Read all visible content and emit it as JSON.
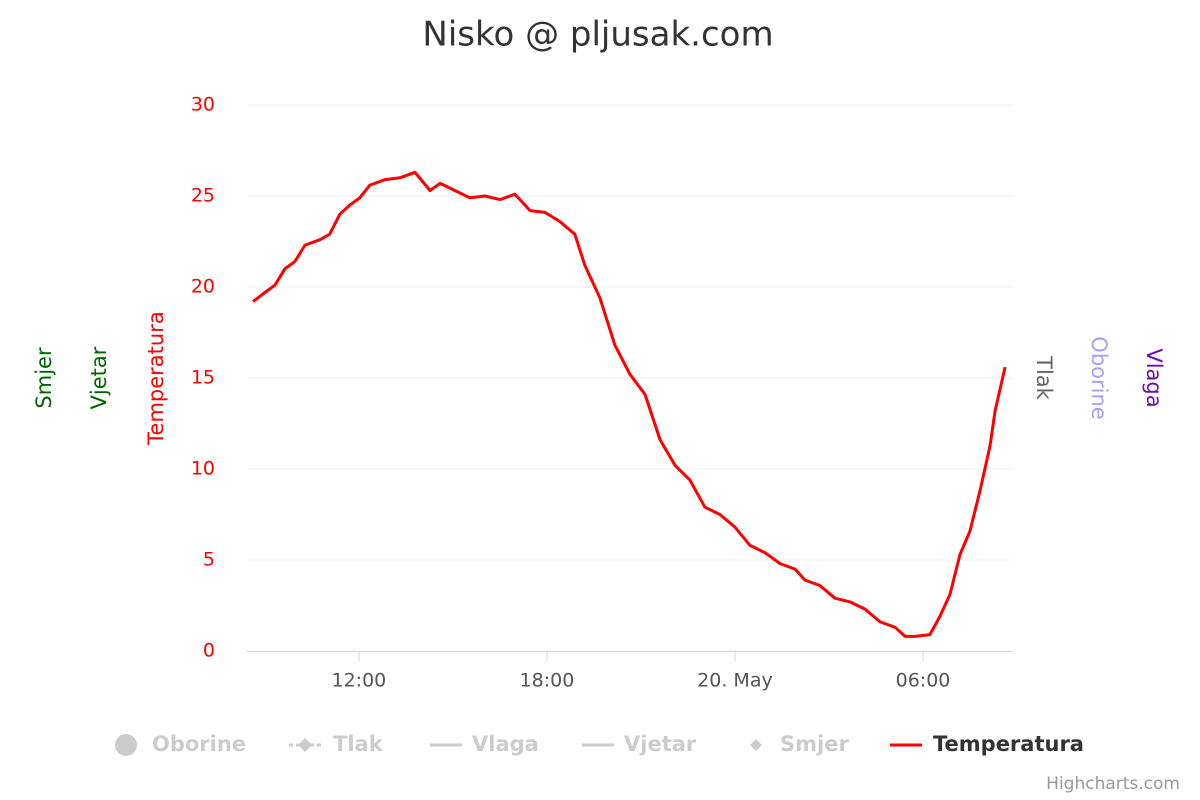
{
  "chart_data": {
    "type": "line",
    "title": "Nisko @ pljusak.com",
    "x": [
      8.62,
      9.0,
      9.32,
      9.64,
      9.96,
      10.28,
      10.76,
      11.07,
      11.39,
      11.71,
      12.03,
      12.35,
      12.83,
      13.31,
      13.79,
      14.27,
      14.59,
      15.06,
      15.54,
      16.02,
      16.5,
      16.98,
      17.46,
      17.94,
      18.41,
      18.89,
      19.21,
      19.69,
      20.17,
      20.65,
      21.13,
      21.61,
      22.09,
      22.56,
      23.04,
      23.52,
      24.0,
      24.48,
      24.96,
      25.44,
      25.92,
      26.23,
      26.71,
      27.19,
      27.67,
      28.15,
      28.63,
      29.11,
      29.43,
      29.74,
      30.22,
      30.54,
      30.86,
      31.18,
      31.5,
      31.82,
      32.14,
      32.3,
      32.62
    ],
    "series": [
      {
        "name": "Temperatura",
        "color": "#ff0000",
        "values": [
          19.2,
          19.7,
          20.1,
          21.0,
          21.4,
          22.3,
          22.6,
          22.9,
          24.0,
          24.5,
          24.9,
          25.6,
          25.9,
          26.0,
          26.3,
          25.3,
          25.7,
          25.3,
          24.9,
          25.0,
          24.8,
          25.1,
          24.2,
          24.1,
          23.6,
          22.9,
          21.2,
          19.4,
          16.8,
          15.2,
          14.1,
          11.6,
          10.2,
          9.4,
          7.9,
          7.5,
          6.8,
          5.8,
          5.4,
          4.8,
          4.5,
          3.9,
          3.6,
          2.9,
          2.7,
          2.3,
          1.6,
          1.3,
          0.8,
          0.8,
          0.9,
          1.9,
          3.1,
          5.3,
          6.6,
          8.8,
          11.3,
          13.2,
          15.6
        ]
      }
    ],
    "xlim": [
      8.43,
      32.84
    ],
    "xticks": [
      {
        "value": 12,
        "label": "12:00"
      },
      {
        "value": 18,
        "label": "18:00"
      },
      {
        "value": 24,
        "label": "20. May"
      },
      {
        "value": 30,
        "label": "06:00"
      }
    ],
    "ylim": [
      0,
      30
    ],
    "yticks": [
      0,
      5,
      10,
      15,
      20,
      25,
      30
    ],
    "grid": true,
    "axis_titles": [
      {
        "text": "Smjer",
        "color": "#006400",
        "side": "left"
      },
      {
        "text": "Vjetar",
        "color": "#006400",
        "side": "left"
      },
      {
        "text": "Temperatura",
        "color": "#ff0000",
        "side": "left"
      },
      {
        "text": "Tlak",
        "color": "#666666",
        "side": "right"
      },
      {
        "text": "Oborine",
        "color": "#a8a0f0",
        "side": "right"
      },
      {
        "text": "Vlaga",
        "color": "#6a0dad",
        "side": "right"
      }
    ],
    "legend": [
      {
        "name": "Oborine",
        "symbol": "circle",
        "visible": false
      },
      {
        "name": "Tlak",
        "symbol": "dash-diamond",
        "visible": false
      },
      {
        "name": "Vlaga",
        "symbol": "line",
        "visible": false
      },
      {
        "name": "Vjetar",
        "symbol": "line",
        "visible": false
      },
      {
        "name": "Smjer",
        "symbol": "diamond",
        "visible": false
      },
      {
        "name": "Temperatura",
        "symbol": "line",
        "visible": true
      }
    ],
    "credit": "Highcharts.com"
  }
}
